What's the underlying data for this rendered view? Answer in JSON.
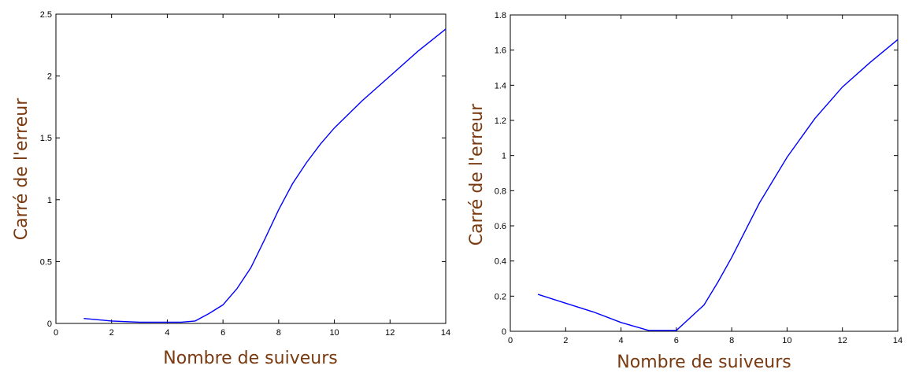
{
  "chart_data": [
    {
      "type": "line",
      "xlabel": "Nombre de suiveurs",
      "ylabel": "Carré de l'erreur",
      "xlim": [
        0,
        14
      ],
      "ylim": [
        0,
        2.5
      ],
      "xticks": [
        0,
        2,
        4,
        6,
        8,
        10,
        12,
        14
      ],
      "yticks": [
        0,
        0.5,
        1,
        1.5,
        2,
        2.5
      ],
      "xtick_labels": [
        "0",
        "2",
        "4",
        "6",
        "8",
        "10",
        "12",
        "14"
      ],
      "ytick_labels": [
        "0",
        "0.5",
        "1",
        "1.5",
        "2",
        "2.5"
      ],
      "grid": false,
      "series": [
        {
          "color": "#0000ff",
          "x": [
            1,
            1.5,
            2,
            3,
            4,
            4.5,
            5,
            5.5,
            6,
            6.5,
            7,
            7.5,
            8,
            8.5,
            9,
            9.5,
            10,
            11,
            12,
            13,
            14
          ],
          "y": [
            0.04,
            0.03,
            0.02,
            0.01,
            0.01,
            0.01,
            0.02,
            0.08,
            0.15,
            0.28,
            0.45,
            0.68,
            0.92,
            1.13,
            1.3,
            1.45,
            1.58,
            1.8,
            2.0,
            2.2,
            2.38
          ]
        }
      ]
    },
    {
      "type": "line",
      "xlabel": "Nombre de suiveurs",
      "ylabel": "Carré de l'erreur",
      "xlim": [
        0,
        14
      ],
      "ylim": [
        0,
        1.8
      ],
      "xticks": [
        0,
        2,
        4,
        6,
        8,
        10,
        12,
        14
      ],
      "yticks": [
        0,
        0.2,
        0.4,
        0.6,
        0.8,
        1,
        1.2,
        1.4,
        1.6,
        1.8
      ],
      "xtick_labels": [
        "0",
        "2",
        "4",
        "6",
        "8",
        "10",
        "12",
        "14"
      ],
      "ytick_labels": [
        "0",
        "0.2",
        "0.4",
        "0.6",
        "0.8",
        "1",
        "1.2",
        "1.4",
        "1.6",
        "1.8"
      ],
      "grid": false,
      "series": [
        {
          "color": "#0000ff",
          "x": [
            1,
            2,
            3,
            4,
            5,
            6,
            7,
            7.5,
            8,
            9,
            10,
            11,
            12,
            13,
            14
          ],
          "y": [
            0.21,
            0.16,
            0.11,
            0.05,
            0.005,
            0.005,
            0.15,
            0.28,
            0.42,
            0.73,
            0.99,
            1.21,
            1.39,
            1.53,
            1.66
          ]
        }
      ]
    }
  ]
}
